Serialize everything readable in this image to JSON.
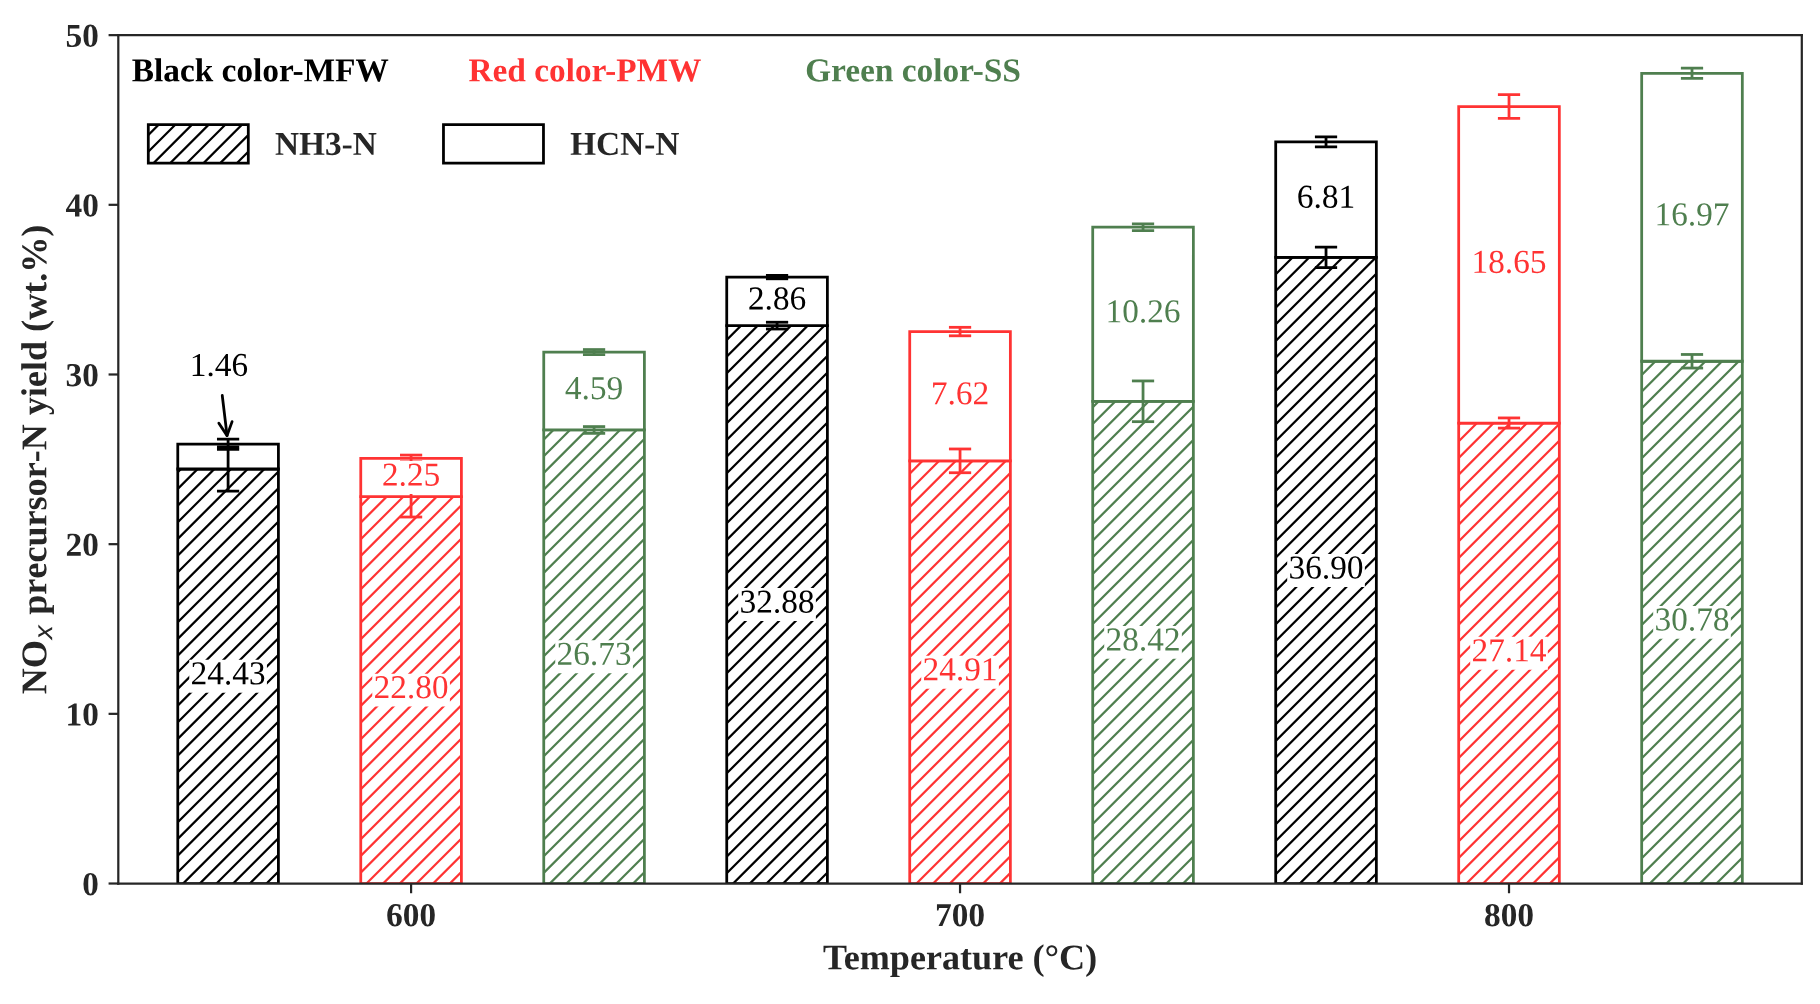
{
  "chart_data": {
    "type": "bar",
    "stacked": true,
    "xlabel": "Temperature (°C)",
    "ylabel": "NO$_{x}$ precursor-N yield (wt.%)",
    "categories": [
      null,
      "600",
      null,
      null,
      "700",
      null,
      null,
      "800",
      null
    ],
    "ylim": [
      0,
      50
    ],
    "yticks": [
      0,
      10,
      20,
      30,
      40,
      50
    ],
    "grid": false,
    "legend": "top left",
    "annotations": [
      "Black color-MFW",
      "Red color-PMW",
      "Green color-SS"
    ],
    "series": [
      {
        "name": "NH3-N",
        "colors": [
          "#000000",
          "#ff3333",
          "#4f7f4f",
          "#000000",
          "#ff3333",
          "#4f7f4f",
          "#000000",
          "#ff3333",
          "#4f7f4f"
        ],
        "values": [
          24.43,
          22.8,
          26.73,
          32.88,
          24.91,
          28.42,
          36.9,
          27.14,
          30.78
        ],
        "value_labels": [
          "24.43",
          "22.80",
          "26.73",
          "32.88",
          "24.91",
          "28.42",
          "36.90",
          "27.14",
          "30.78"
        ],
        "errors": [
          1.3,
          1.2,
          0.2,
          0.2,
          0.7,
          1.2,
          0.6,
          0.3,
          0.4
        ]
      },
      {
        "name": "HCN-N",
        "colors": [
          "#000000",
          "#ff3333",
          "#4f7f4f",
          "#000000",
          "#ff3333",
          "#4f7f4f",
          "#000000",
          "#ff3333",
          "#4f7f4f"
        ],
        "values": [
          1.46,
          2.25,
          4.59,
          2.86,
          7.62,
          10.26,
          6.81,
          18.65,
          16.97
        ],
        "value_labels": [
          "1.46",
          "2.25",
          "4.59",
          "2.86",
          "7.62",
          "10.26",
          "6.81",
          "18.65",
          "16.97"
        ],
        "errors": [
          0.3,
          0.2,
          0.15,
          0.1,
          0.25,
          0.2,
          0.3,
          0.7,
          0.3
        ]
      }
    ]
  }
}
